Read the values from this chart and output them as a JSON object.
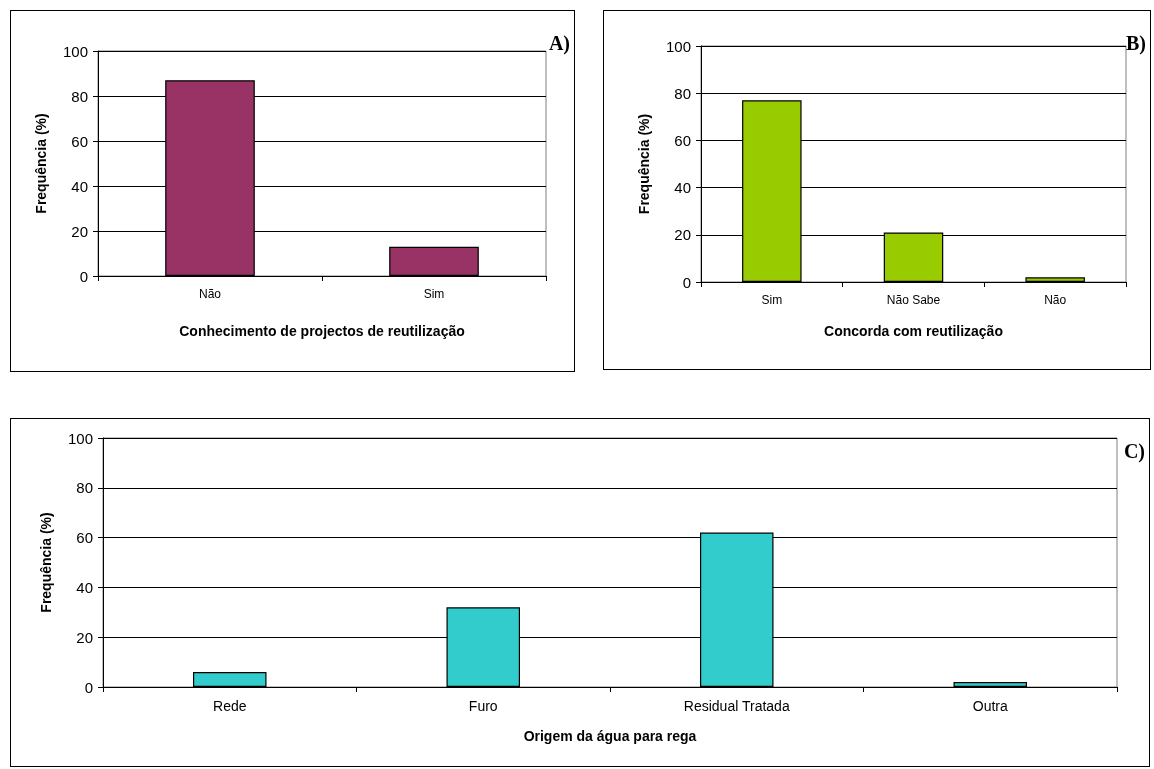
{
  "chart_data": [
    {
      "type": "bar",
      "annotations": [
        "A)"
      ],
      "xlabel": "Conhecimento de projectos de reutilização",
      "ylabel": "Frequência (%)",
      "categories": [
        "Não",
        "Sim"
      ],
      "values": [
        87,
        13
      ],
      "color": "#993366",
      "ylim": [
        0,
        100
      ],
      "yticks": [
        0,
        20,
        40,
        60,
        80,
        100
      ],
      "grid": "y"
    },
    {
      "type": "bar",
      "annotations": [
        "B)"
      ],
      "xlabel": "Concorda com reutilização",
      "ylabel": "Frequência (%)",
      "categories": [
        "Sim",
        "Não Sabe",
        "Não"
      ],
      "values": [
        77,
        21,
        2
      ],
      "color": "#99cc00",
      "ylim": [
        0,
        100
      ],
      "yticks": [
        0,
        20,
        40,
        60,
        80,
        100
      ],
      "grid": "y"
    },
    {
      "type": "bar",
      "annotations": [
        "C)"
      ],
      "xlabel": "Origem da água para rega",
      "ylabel": "Frequência (%)",
      "categories": [
        "Rede",
        "Furo",
        "Residual Tratada",
        "Outra"
      ],
      "values": [
        6,
        32,
        62,
        2
      ],
      "color": "#33cccc",
      "ylim": [
        0,
        100
      ],
      "yticks": [
        0,
        20,
        40,
        60,
        80,
        100
      ],
      "grid": "y"
    }
  ]
}
